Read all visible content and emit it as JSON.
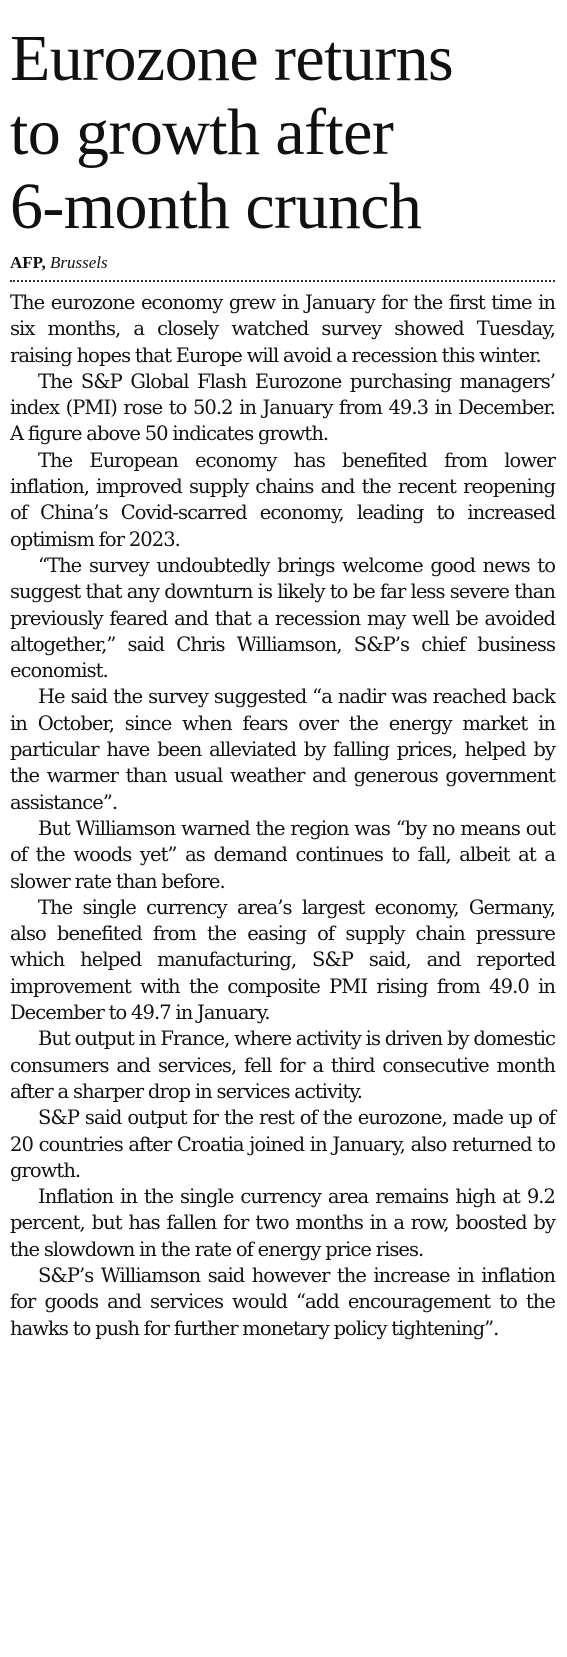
{
  "article": {
    "headline_lines": [
      "Eurozone returns",
      "to growth after",
      "6-month crunch"
    ],
    "byline": {
      "agency": "AFP,",
      "location": "Brussels"
    },
    "paragraphs": [
      "The eurozone economy grew in January for the first time in six months, a closely watched survey showed Tuesday, raising hopes that Europe will avoid a recession this winter.",
      "The S&P Global Flash Eurozone purchasing managers’ index (PMI) rose to 50.2 in January from 49.3 in December. A figure above 50 indicates growth.",
      "The European economy has benefited from lower inflation, improved supply chains and the recent reopening of China’s Covid-scarred economy, leading to increased optimism for 2023.",
      "“The survey undoubtedly brings welcome good news to suggest that any downturn is likely to be far less severe than previously feared and that a recession may well be avoided altogether,” said Chris Williamson, S&P’s chief business economist.",
      "He said the survey suggested “a nadir was reached back in October, since when fears over the energy market in particular have been alleviated by falling prices, helped by the warmer than usual weather and generous government assistance”.",
      "But Williamson warned the region was “by no means out of the woods yet” as demand continues to fall, albeit at a slower rate than before.",
      "The single currency area’s largest economy, Germany, also benefited from the easing of supply chain pressure which helped manufacturing, S&P said, and reported improvement with the composite PMI rising from 49.0 in December to 49.7 in January.",
      "But output in France, where activity is driven by domestic consumers and services, fell for a third consecutive month after a sharper drop in services activity.",
      "S&P said output for the rest of the eurozone, made up of 20 countries after Croatia joined in January, also returned to growth.",
      "Inflation in the single currency area remains high at 9.2 percent, but has fallen for two months in a row, boosted by the slowdown in the rate of energy price rises.",
      "S&P’s Williamson said however the increase in inflation for goods and services would “add encouragement to the hawks to push for further monetary policy tightening”."
    ]
  }
}
